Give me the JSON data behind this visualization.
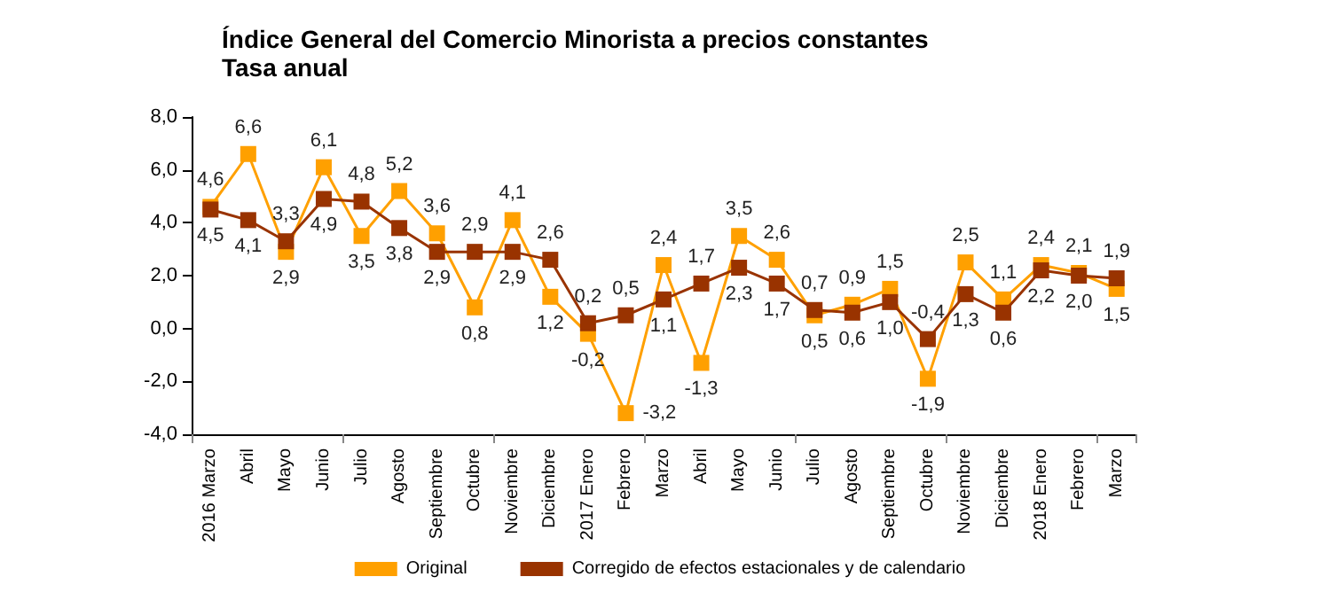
{
  "chart_data": {
    "type": "line",
    "title": "Índice General del Comercio Minorista a precios constantes",
    "subtitle": "Tasa anual",
    "categories": [
      "2016 Marzo",
      "Abril",
      "Mayo",
      "Junio",
      "Julio",
      "Agosto",
      "Septiembre",
      "Octubre",
      "Noviembre",
      "Diciembre",
      "2017 Enero",
      "Febrero",
      "Marzo",
      "Abril",
      "Mayo",
      "Junio",
      "Julio",
      "Agosto",
      "Septiembre",
      "Octubre",
      "Noviembre",
      "Diciembre",
      "2018 Enero",
      "Febrero",
      "Marzo"
    ],
    "series": [
      {
        "name": "Original",
        "color": "#ffa000",
        "values": [
          4.6,
          6.6,
          2.9,
          6.1,
          3.5,
          5.2,
          3.6,
          0.8,
          4.1,
          1.2,
          -0.2,
          -3.2,
          2.4,
          -1.3,
          3.5,
          2.6,
          0.5,
          0.9,
          1.5,
          -1.9,
          2.5,
          1.1,
          2.4,
          2.1,
          1.5
        ],
        "value_labels": [
          "4,6",
          "6,6",
          "2,9",
          "6,1",
          "3,5",
          "5,2",
          "3,6",
          "0,8",
          "4,1",
          "1,2",
          "-0,2",
          "-3,2",
          "2,4",
          "-1,3",
          "3,5",
          "2,6",
          "0,5",
          "0,9",
          "1,5",
          "-1,9",
          "2,5",
          "1,1",
          "2,4",
          "2,1",
          "1,5"
        ]
      },
      {
        "name": "Corregido de efectos estacionales y de calendario",
        "color": "#993300",
        "values": [
          4.5,
          4.1,
          3.3,
          4.9,
          4.8,
          3.8,
          2.9,
          2.9,
          2.9,
          2.6,
          0.2,
          0.5,
          1.1,
          1.7,
          2.3,
          1.7,
          0.7,
          0.6,
          1.0,
          -0.4,
          1.3,
          0.6,
          2.2,
          2.0,
          1.9
        ],
        "value_labels": [
          "4,5",
          "4,1",
          "3,3",
          "4,9",
          "4,8",
          "3,8",
          "2,9",
          "2,9",
          "2,9",
          "2,6",
          "0,2",
          "0,5",
          "1,1",
          "1,7",
          "2,3",
          "1,7",
          "0,7",
          "0,6",
          "1,0",
          "-0,4",
          "1,3",
          "0,6",
          "2,2",
          "2,0",
          "1,9"
        ]
      }
    ],
    "ylim": [
      -4,
      8
    ],
    "yticks": [
      {
        "value": -4,
        "label": "-4,0"
      },
      {
        "value": -2,
        "label": "-2,0"
      },
      {
        "value": 0,
        "label": "0,0"
      },
      {
        "value": 2,
        "label": "2,0"
      },
      {
        "value": 4,
        "label": "4,0"
      },
      {
        "value": 6,
        "label": "6,0"
      },
      {
        "value": 8,
        "label": "8,0"
      }
    ],
    "grid": false,
    "legend": "bottom",
    "marker": "square",
    "line_style": "solid"
  }
}
